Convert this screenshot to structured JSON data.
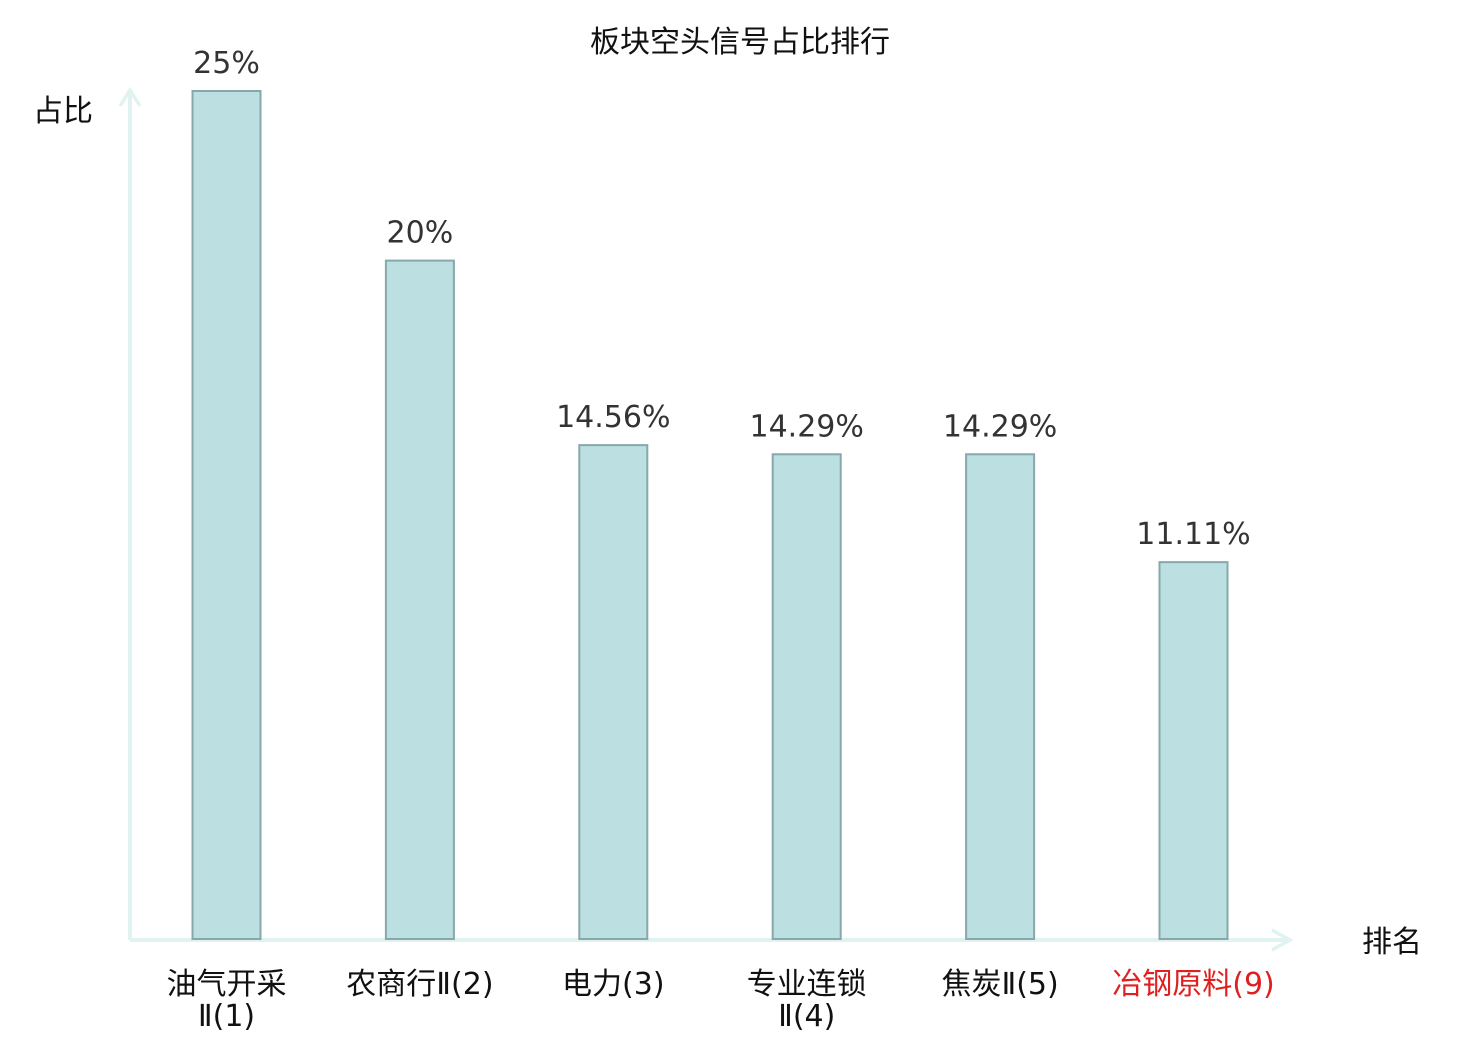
{
  "chart_data": {
    "type": "bar",
    "title": "板块空头信号占比排行",
    "ylabel": "占比",
    "xlabel": "排名",
    "ylim": [
      0,
      25
    ],
    "grid": false,
    "categories": [
      {
        "lines": [
          "油气开采",
          "Ⅱ(1)"
        ],
        "highlight": false
      },
      {
        "lines": [
          "农商行Ⅱ(2)"
        ],
        "highlight": false
      },
      {
        "lines": [
          "电力(3)"
        ],
        "highlight": false
      },
      {
        "lines": [
          "专业连锁",
          "Ⅱ(4)"
        ],
        "highlight": false
      },
      {
        "lines": [
          "焦炭Ⅱ(5)"
        ],
        "highlight": false
      },
      {
        "lines": [
          "冶钢原料(9)"
        ],
        "highlight": true
      }
    ],
    "values": [
      25,
      20,
      14.56,
      14.29,
      14.29,
      11.11
    ],
    "value_labels": [
      "25%",
      "20%",
      "14.56%",
      "14.29%",
      "14.29%",
      "11.11%"
    ]
  },
  "colors": {
    "bar_fill": "#bce0e2",
    "bar_stroke": "#86a8aa",
    "axis": "#e0f3f1",
    "text": "#111111",
    "value_text": "#333333",
    "highlight": "#e02020"
  }
}
